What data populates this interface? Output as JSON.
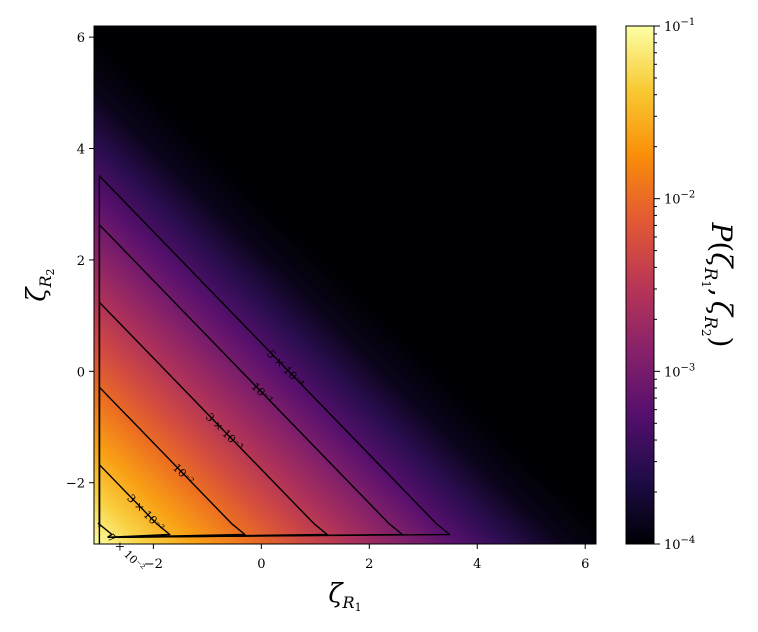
{
  "chart_data": {
    "type": "heatmap",
    "title": "",
    "xlabel": {
      "main": "ζ",
      "sub": "R",
      "subsub": "1"
    },
    "ylabel": {
      "main": "ζ",
      "sub": "R",
      "subsub": "2"
    },
    "xlim": [
      -3.1,
      6.2
    ],
    "ylim": [
      -3.1,
      6.2
    ],
    "xticks": [
      -2,
      0,
      2,
      4,
      6
    ],
    "yticks": [
      -2,
      0,
      2,
      4,
      6
    ],
    "xtick_labels": [
      "−2",
      "0",
      "2",
      "4",
      "6"
    ],
    "ytick_labels": [
      "−2",
      "0",
      "2",
      "4",
      "6"
    ],
    "colormap": "inferno",
    "colormap_stops": [
      "#000004",
      "#1f0c48",
      "#550f6d",
      "#88226a",
      "#ba3655",
      "#e35933",
      "#f98e09",
      "#f8c932",
      "#fcffa4"
    ],
    "colorbar": {
      "label": "P(ζR1, ζR2)",
      "label_parts": {
        "p": "P",
        "open": "(",
        "zeta1": "ζ",
        "r1": "R",
        "n1": "1",
        "comma": ",",
        "zeta2": "ζ",
        "r2": "R",
        "n2": "2",
        "close": ")"
      },
      "scale": "log",
      "vmin": 0.0001,
      "vmax": 0.1,
      "ticks": [
        {
          "value": 0.1,
          "mantissa": "10",
          "exp": "−1"
        },
        {
          "value": 0.01,
          "mantissa": "10",
          "exp": "−2"
        },
        {
          "value": 0.001,
          "mantissa": "10",
          "exp": "−3"
        },
        {
          "value": 0.0001,
          "mantissa": "10",
          "exp": "−4"
        }
      ]
    },
    "field_approximation": {
      "reference_point": [
        -3.1,
        -3.1
      ],
      "value_at_reference": 0.1,
      "log10_slope_per_unit_sum": -0.343
    },
    "contours": [
      {
        "level": 0.0005,
        "label": "5 × 10⁻⁴"
      },
      {
        "level": 0.001,
        "label": "10⁻³"
      },
      {
        "level": 0.003,
        "label": "3 × 10⁻³"
      },
      {
        "level": 0.01,
        "label": "10⁻²"
      },
      {
        "level": 0.03,
        "label": "3 × 10⁻²"
      },
      {
        "level": 0.07,
        "label": "7 × 10⁻²"
      }
    ]
  }
}
